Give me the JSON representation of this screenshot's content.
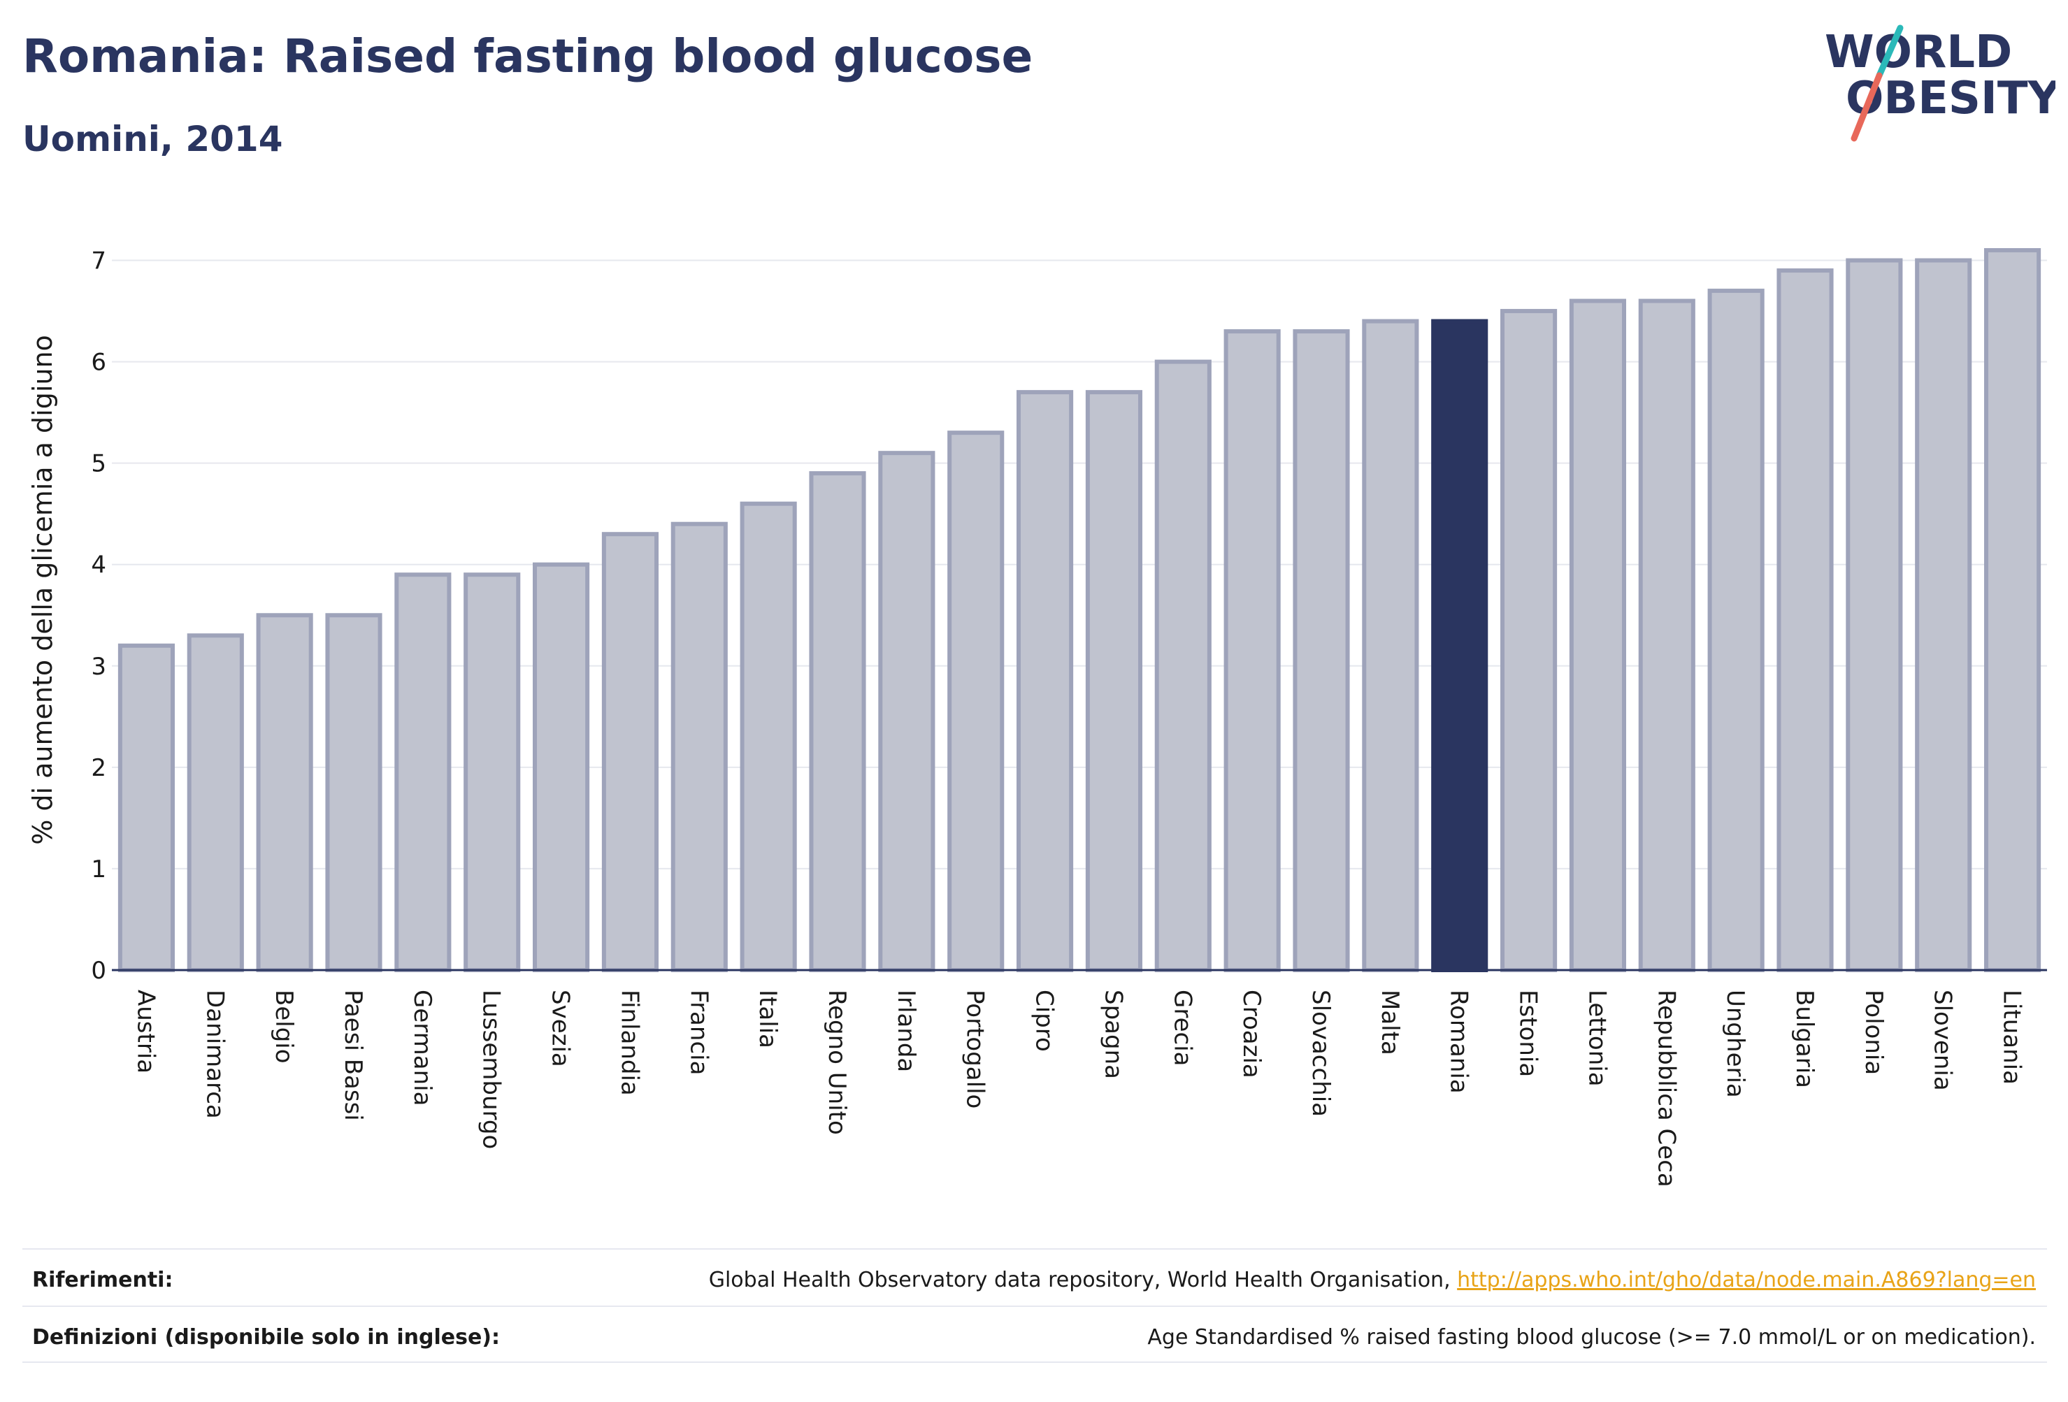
{
  "header": {
    "title": "Romania: Raised fasting blood glucose",
    "subtitle": "Uomini, 2014"
  },
  "logo": {
    "line1": "WORLD",
    "line2": "OBESITY",
    "text_color": "#2a3560",
    "slash_colors": [
      "#2bb9b9",
      "#e8685a"
    ]
  },
  "chart_data": {
    "type": "bar",
    "ylabel": "% di aumento della glicemia a digiuno",
    "xlabel": "",
    "ylim": [
      0,
      7.5
    ],
    "yticks": [
      0,
      1,
      2,
      3,
      4,
      5,
      6,
      7
    ],
    "grid": true,
    "highlight": "Romania",
    "colors": {
      "bar_fill": "#c0c3cf",
      "bar_stroke": "#9ea3ba",
      "highlight_fill": "#2a3560"
    },
    "categories": [
      "Austria",
      "Danimarca",
      "Belgio",
      "Paesi Bassi",
      "Germania",
      "Lussemburgo",
      "Svezia",
      "Finlandia",
      "Francia",
      "Italia",
      "Regno Unito",
      "Irlanda",
      "Portogallo",
      "Cipro",
      "Spagna",
      "Grecia",
      "Croazia",
      "Slovacchia",
      "Malta",
      "Romania",
      "Estonia",
      "Lettonia",
      "Repubblica Ceca",
      "Ungheria",
      "Bulgaria",
      "Polonia",
      "Slovenia",
      "Lituania"
    ],
    "values": [
      3.2,
      3.3,
      3.5,
      3.5,
      3.9,
      3.9,
      4.0,
      4.3,
      4.4,
      4.6,
      4.9,
      5.1,
      5.3,
      5.7,
      5.7,
      6.0,
      6.3,
      6.3,
      6.4,
      6.4,
      6.5,
      6.6,
      6.6,
      6.7,
      6.9,
      7.0,
      7.0,
      7.1
    ]
  },
  "footer": {
    "references_label": "Riferimenti:",
    "references_text": "Global Health Observatory data repository, World Health Organisation, ",
    "references_link": "http://apps.who.int/gho/data/node.main.A869?lang=en",
    "definitions_label": "Definizioni (disponibile solo in inglese):",
    "definitions_text": "Age Standardised % raised fasting blood glucose (>= 7.0 mmol/L or on medication)."
  }
}
